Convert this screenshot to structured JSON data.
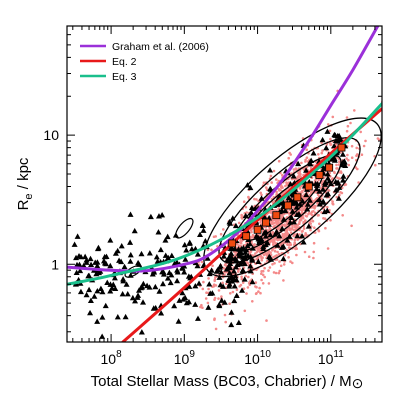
{
  "chart_data": {
    "type": "scatter",
    "xlabel_main": "Total Stellar Mass (BC03, Chabrier) / M",
    "xlabel_symbol": "⊙",
    "ylabel_main": "R",
    "ylabel_sub": "e",
    "ylabel_rest": " / kpc",
    "x_scale": "log",
    "y_scale": "log",
    "xlim": [
      25000000.0,
      500000000000.0
    ],
    "ylim": [
      0.25,
      70
    ],
    "x_ticks": [
      {
        "base": "10",
        "exp": "8",
        "value": 100000000.0
      },
      {
        "base": "10",
        "exp": "9",
        "value": 1000000000.0
      },
      {
        "base": "10",
        "exp": "10",
        "value": 10000000000.0
      },
      {
        "base": "10",
        "exp": "11",
        "value": 100000000000.0
      }
    ],
    "y_ticks": [
      {
        "label": "1",
        "value": 1
      },
      {
        "label": "10",
        "value": 10
      }
    ],
    "grid": false,
    "legend_position": "top-left",
    "series": [
      {
        "name": "Graham et al. (2006)",
        "kind": "line",
        "color": "#9b30d9",
        "x": [
          25000000.0,
          100000000.0,
          300000000.0,
          1000000000.0,
          2000000000.0,
          5000000000.0,
          10000000000.0,
          20000000000.0,
          50000000000.0,
          100000000000.0,
          200000000000.0,
          500000000000.0
        ],
        "y": [
          0.95,
          0.9,
          0.89,
          1.0,
          1.15,
          1.7,
          2.6,
          4.2,
          9.0,
          17,
          32,
          80
        ]
      },
      {
        "name": "Eq. 2",
        "kind": "line",
        "color": "#e8191a",
        "x": [
          145000000.0,
          1000000000.0,
          10000000000.0,
          100000000000.0,
          500000000000.0
        ],
        "y": [
          0.25,
          0.66,
          2.2,
          7.2,
          16
        ]
      },
      {
        "name": "Eq. 3",
        "kind": "line",
        "color": "#1abf8c",
        "x": [
          25000000.0,
          100000000.0,
          1000000000.0,
          10000000000.0,
          100000000000.0,
          500000000000.0
        ],
        "y": [
          0.7,
          0.82,
          1.15,
          2.3,
          6.8,
          17.5
        ]
      },
      {
        "name": "",
        "kind": "squares",
        "color": "#f04a10",
        "x": [
          4500000000.0,
          7000000000.0,
          10000000000.0,
          13000000000.0,
          18000000000.0,
          26000000000.0,
          35000000000.0,
          50000000000.0,
          70000000000.0,
          95000000000.0,
          140000000000.0
        ],
        "y": [
          1.45,
          1.65,
          1.85,
          2.1,
          2.4,
          2.85,
          3.3,
          4.0,
          4.9,
          5.6,
          8.0
        ]
      }
    ],
    "annotations": {
      "triangles_color": "#000000",
      "points_color": "#f48a8a",
      "contour_color": "#000000"
    }
  }
}
